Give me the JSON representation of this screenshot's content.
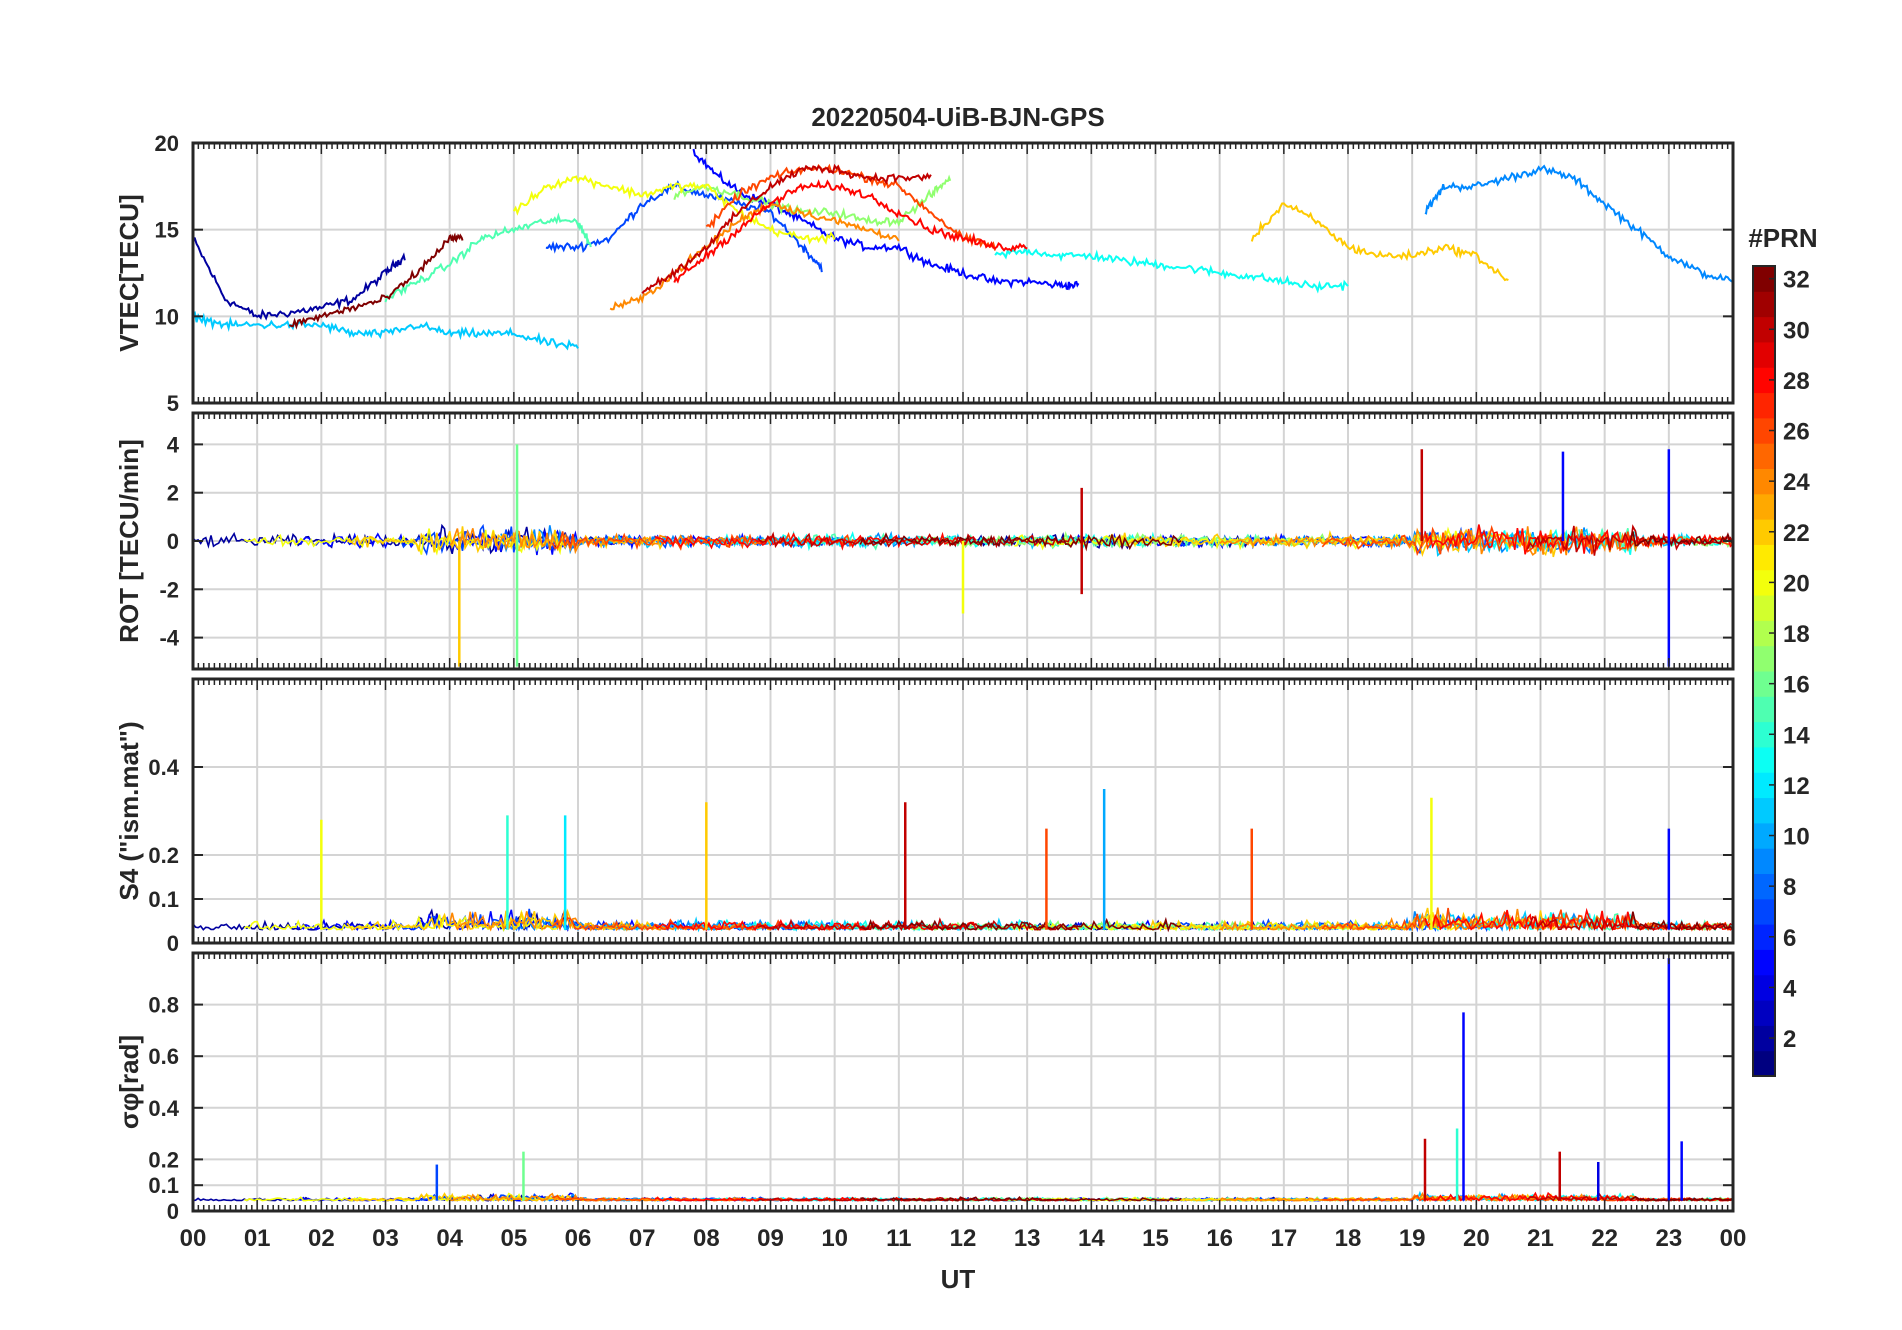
{
  "figure": {
    "title": "20220504-UiB-BJN-GPS",
    "xlabel": "UT",
    "xticks": [
      "00",
      "01",
      "02",
      "03",
      "04",
      "05",
      "06",
      "07",
      "08",
      "09",
      "10",
      "11",
      "12",
      "13",
      "14",
      "15",
      "16",
      "17",
      "18",
      "19",
      "20",
      "21",
      "22",
      "23",
      "00"
    ],
    "colorbar": {
      "label": "#PRN",
      "range": [
        1,
        32
      ],
      "ticks": [
        "2",
        "4",
        "6",
        "8",
        "10",
        "12",
        "14",
        "16",
        "18",
        "20",
        "22",
        "24",
        "26",
        "28",
        "30",
        "32"
      ],
      "colormap": "jet"
    }
  },
  "chart_data": [
    {
      "type": "line",
      "panel": "vtec",
      "title": "20220504-UiB-BJN-GPS",
      "ylabel": "VTEC[TECU]",
      "ylim": [
        5,
        20
      ],
      "yticks": [
        "5",
        "10",
        "15",
        "20"
      ],
      "xlim": [
        0,
        24
      ],
      "grid": true,
      "series_note": "one line per GPS PRN (1-32), colored by PRN; values approximate",
      "series": [
        {
          "prn": 2,
          "x": [
            0,
            0.5,
            1,
            1.5,
            2,
            2.5,
            3,
            3.3
          ],
          "values": [
            14.5,
            11,
            10,
            10.2,
            10.5,
            11,
            12.5,
            13.5
          ]
        },
        {
          "prn": 5,
          "x": [
            7.8,
            8.2,
            8.6,
            9,
            9.5,
            10,
            10.5,
            11,
            11.5,
            12,
            12.5,
            13,
            13.5,
            13.8
          ],
          "values": [
            19.5,
            18,
            17,
            16.5,
            15.5,
            14.5,
            14,
            14,
            13,
            12.5,
            12,
            12,
            11.8,
            11.8
          ]
        },
        {
          "prn": 7,
          "x": [
            5.5,
            6,
            6.5,
            7,
            7.5,
            8,
            8.5,
            9,
            9.5,
            9.8
          ],
          "values": [
            14,
            14,
            14.5,
            16.5,
            17.5,
            17,
            16.5,
            16,
            14,
            12.8
          ]
        },
        {
          "prn": 9,
          "x": [
            19.2,
            19.5,
            20,
            20.5,
            21,
            21.5,
            22,
            22.5,
            23,
            23.5,
            24
          ],
          "values": [
            16,
            17.5,
            17.5,
            18,
            18.5,
            18,
            16.5,
            15,
            13.5,
            12.5,
            12
          ]
        },
        {
          "prn": 11,
          "x": [
            0,
            0.5,
            1,
            1.5,
            2,
            2.5,
            3,
            3.5,
            4,
            4.5,
            5,
            5.5,
            6
          ],
          "values": [
            10,
            9.5,
            9.5,
            9.5,
            9.5,
            9,
            9,
            9.5,
            9,
            9,
            9,
            8.5,
            8.2
          ]
        },
        {
          "prn": 13,
          "x": [
            12.5,
            13,
            13.5,
            14,
            14.5,
            15,
            15.5,
            16,
            16.5,
            17,
            17.5,
            18
          ],
          "values": [
            13.5,
            13.8,
            13.5,
            13.5,
            13.2,
            13,
            12.8,
            12.5,
            12.3,
            12,
            11.7,
            11.8
          ]
        },
        {
          "prn": 15,
          "x": [
            3,
            3.5,
            4,
            4.5,
            5,
            5.5,
            6,
            6.2
          ],
          "values": [
            11,
            12,
            13,
            14.5,
            15,
            15.5,
            15.5,
            14
          ]
        },
        {
          "prn": 17,
          "x": [
            7.5,
            8,
            8.5,
            9,
            9.5,
            10,
            10.5,
            11,
            11.5,
            11.8
          ],
          "values": [
            17,
            17.5,
            17,
            16.5,
            16,
            16,
            15.5,
            15.5,
            17,
            18
          ]
        },
        {
          "prn": 20,
          "x": [
            5,
            5.5,
            6,
            6.5,
            7,
            7.5,
            8,
            8.5,
            9,
            9.5,
            10
          ],
          "values": [
            16,
            17.5,
            18,
            17.5,
            17,
            17.5,
            17.5,
            16,
            15,
            14.5,
            14.5
          ]
        },
        {
          "prn": 22,
          "x": [
            16.5,
            17,
            17.5,
            18,
            18.5,
            19,
            19.5,
            20,
            20.5
          ],
          "values": [
            14.5,
            16.5,
            15.5,
            14,
            13.5,
            13.5,
            14,
            13.5,
            12
          ]
        },
        {
          "prn": 24,
          "x": [
            6.5,
            7,
            7.5,
            8,
            8.5,
            9,
            9.5,
            10,
            10.5,
            11
          ],
          "values": [
            10.5,
            11,
            12.5,
            14,
            15.5,
            16.5,
            16,
            15.5,
            15,
            14.5
          ]
        },
        {
          "prn": 26,
          "x": [
            8,
            8.5,
            9,
            9.5,
            10,
            10.5,
            11,
            11.5,
            12,
            12.5
          ],
          "values": [
            15,
            17,
            18,
            18.5,
            18.5,
            18,
            17.5,
            16,
            14.5,
            14
          ]
        },
        {
          "prn": 28,
          "x": [
            7.5,
            8,
            8.5,
            9,
            9.5,
            10,
            10.5,
            11,
            11.5,
            12,
            12.5,
            13
          ],
          "values": [
            12,
            13.5,
            15,
            16.5,
            17.5,
            17.5,
            17,
            16,
            15,
            14.5,
            14,
            14
          ]
        },
        {
          "prn": 30,
          "x": [
            7,
            7.5,
            8,
            8.5,
            9,
            9.5,
            10,
            10.5,
            11,
            11.5
          ],
          "values": [
            11.5,
            12.5,
            14,
            16,
            17.5,
            18.5,
            18.5,
            18,
            18,
            18
          ]
        },
        {
          "prn": 32,
          "x": [
            1.5,
            2,
            2.5,
            3,
            3.5,
            4,
            4.2
          ],
          "values": [
            9.5,
            10,
            10.5,
            11,
            12.5,
            14.5,
            14.5
          ]
        }
      ]
    },
    {
      "type": "line",
      "panel": "rot",
      "ylabel": "ROT [TECU/min]",
      "ylim": [
        -5.3,
        5.3
      ],
      "yticks": [
        "-4",
        "-2",
        "0",
        "2",
        "4"
      ],
      "xlim": [
        0,
        24
      ],
      "grid": true,
      "series_note": "dense fluctuating lines around 0 for each PRN; notable spikes listed",
      "spikes": [
        {
          "x": 4.15,
          "value": -5.2,
          "prn": 22
        },
        {
          "x": 5.05,
          "value": 4.0,
          "prn": 16
        },
        {
          "x": 5.05,
          "value": -5.2,
          "prn": 16
        },
        {
          "x": 13.85,
          "value": 2.2,
          "prn": 30
        },
        {
          "x": 13.85,
          "value": -2.2,
          "prn": 30
        },
        {
          "x": 12.0,
          "value": -3.0,
          "prn": 20
        },
        {
          "x": 19.15,
          "value": 3.8,
          "prn": 30
        },
        {
          "x": 21.35,
          "value": 3.7,
          "prn": 5
        },
        {
          "x": 23.0,
          "value": -5.2,
          "prn": 5
        },
        {
          "x": 23.0,
          "value": 3.8,
          "prn": 5
        }
      ]
    },
    {
      "type": "line",
      "panel": "s4",
      "ylabel": "S4 (\"ism.mat\")",
      "ylim": [
        0,
        0.6
      ],
      "yticks": [
        "0",
        "0.1",
        "0.2",
        "0.4"
      ],
      "xlim": [
        0,
        24
      ],
      "grid": true,
      "peaks": [
        {
          "x": 2.0,
          "value": 0.28,
          "prn": 20
        },
        {
          "x": 4.9,
          "value": 0.29,
          "prn": 14
        },
        {
          "x": 5.8,
          "value": 0.29,
          "prn": 12
        },
        {
          "x": 8.0,
          "value": 0.32,
          "prn": 22
        },
        {
          "x": 11.1,
          "value": 0.32,
          "prn": 30
        },
        {
          "x": 13.3,
          "value": 0.26,
          "prn": 26
        },
        {
          "x": 14.2,
          "value": 0.35,
          "prn": 10
        },
        {
          "x": 16.5,
          "value": 0.26,
          "prn": 26
        },
        {
          "x": 19.3,
          "value": 0.33,
          "prn": 20
        },
        {
          "x": 23.0,
          "value": 0.26,
          "prn": 5
        }
      ]
    },
    {
      "type": "line",
      "panel": "sigma_phi",
      "ylabel": "σφ[rad]",
      "ylim": [
        0,
        1.0
      ],
      "yticks": [
        "0",
        "0.1",
        "0.2",
        "0.4",
        "0.6",
        "0.8"
      ],
      "xlim": [
        0,
        24
      ],
      "grid": true,
      "peaks": [
        {
          "x": 3.8,
          "value": 0.18,
          "prn": 7
        },
        {
          "x": 5.15,
          "value": 0.23,
          "prn": 16
        },
        {
          "x": 19.2,
          "value": 0.28,
          "prn": 30
        },
        {
          "x": 19.8,
          "value": 0.77,
          "prn": 5
        },
        {
          "x": 19.7,
          "value": 0.32,
          "prn": 14
        },
        {
          "x": 21.3,
          "value": 0.23,
          "prn": 30
        },
        {
          "x": 21.9,
          "value": 0.19,
          "prn": 4
        },
        {
          "x": 23.0,
          "value": 0.98,
          "prn": 5
        },
        {
          "x": 23.2,
          "value": 0.27,
          "prn": 5
        }
      ]
    }
  ]
}
